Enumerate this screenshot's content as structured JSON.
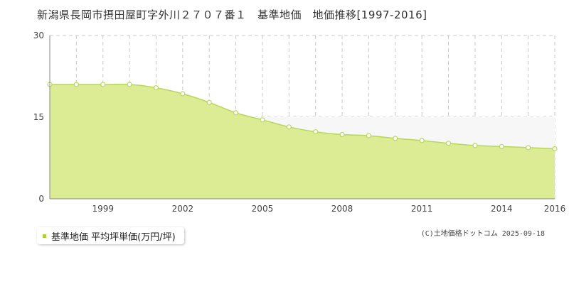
{
  "header": {
    "title": "新潟県長岡市摂田屋町字外川２７０７番１　基準地価　地価推移[1997-2016]"
  },
  "legend": {
    "label": "基準地価 平均坪単価(万円/坪)"
  },
  "credit": "(C)土地価格ドットコム 2025-09-18",
  "colors": {
    "area_fill": "#dcec95",
    "line": "#b9d65a",
    "marker_fill": "#ffffff",
    "grid": "#c8c8c8",
    "legend_swatch": "#a8d13a"
  },
  "chart_data": {
    "type": "area",
    "title": "",
    "xlabel": "",
    "ylabel": "",
    "x": [
      1997,
      1998,
      1999,
      2000,
      2001,
      2002,
      2003,
      2004,
      2005,
      2006,
      2007,
      2008,
      2009,
      2010,
      2011,
      2012,
      2013,
      2014,
      2015,
      2016
    ],
    "series": [
      {
        "name": "基準地価 平均坪単価(万円/坪)",
        "values": [
          21.0,
          21.0,
          21.0,
          21.0,
          20.4,
          19.3,
          17.7,
          15.8,
          14.5,
          13.2,
          12.3,
          11.8,
          11.6,
          11.1,
          10.7,
          10.2,
          9.8,
          9.6,
          9.4,
          9.2
        ]
      }
    ],
    "xlim": [
      1997,
      2016
    ],
    "ylim": [
      0,
      30
    ],
    "y_ticks": [
      0,
      15,
      30
    ],
    "x_tick_labels": [
      "1999",
      "2002",
      "2005",
      "2008",
      "2011",
      "2014",
      "2016"
    ],
    "grid": true,
    "legend_position": "bottom-left"
  }
}
